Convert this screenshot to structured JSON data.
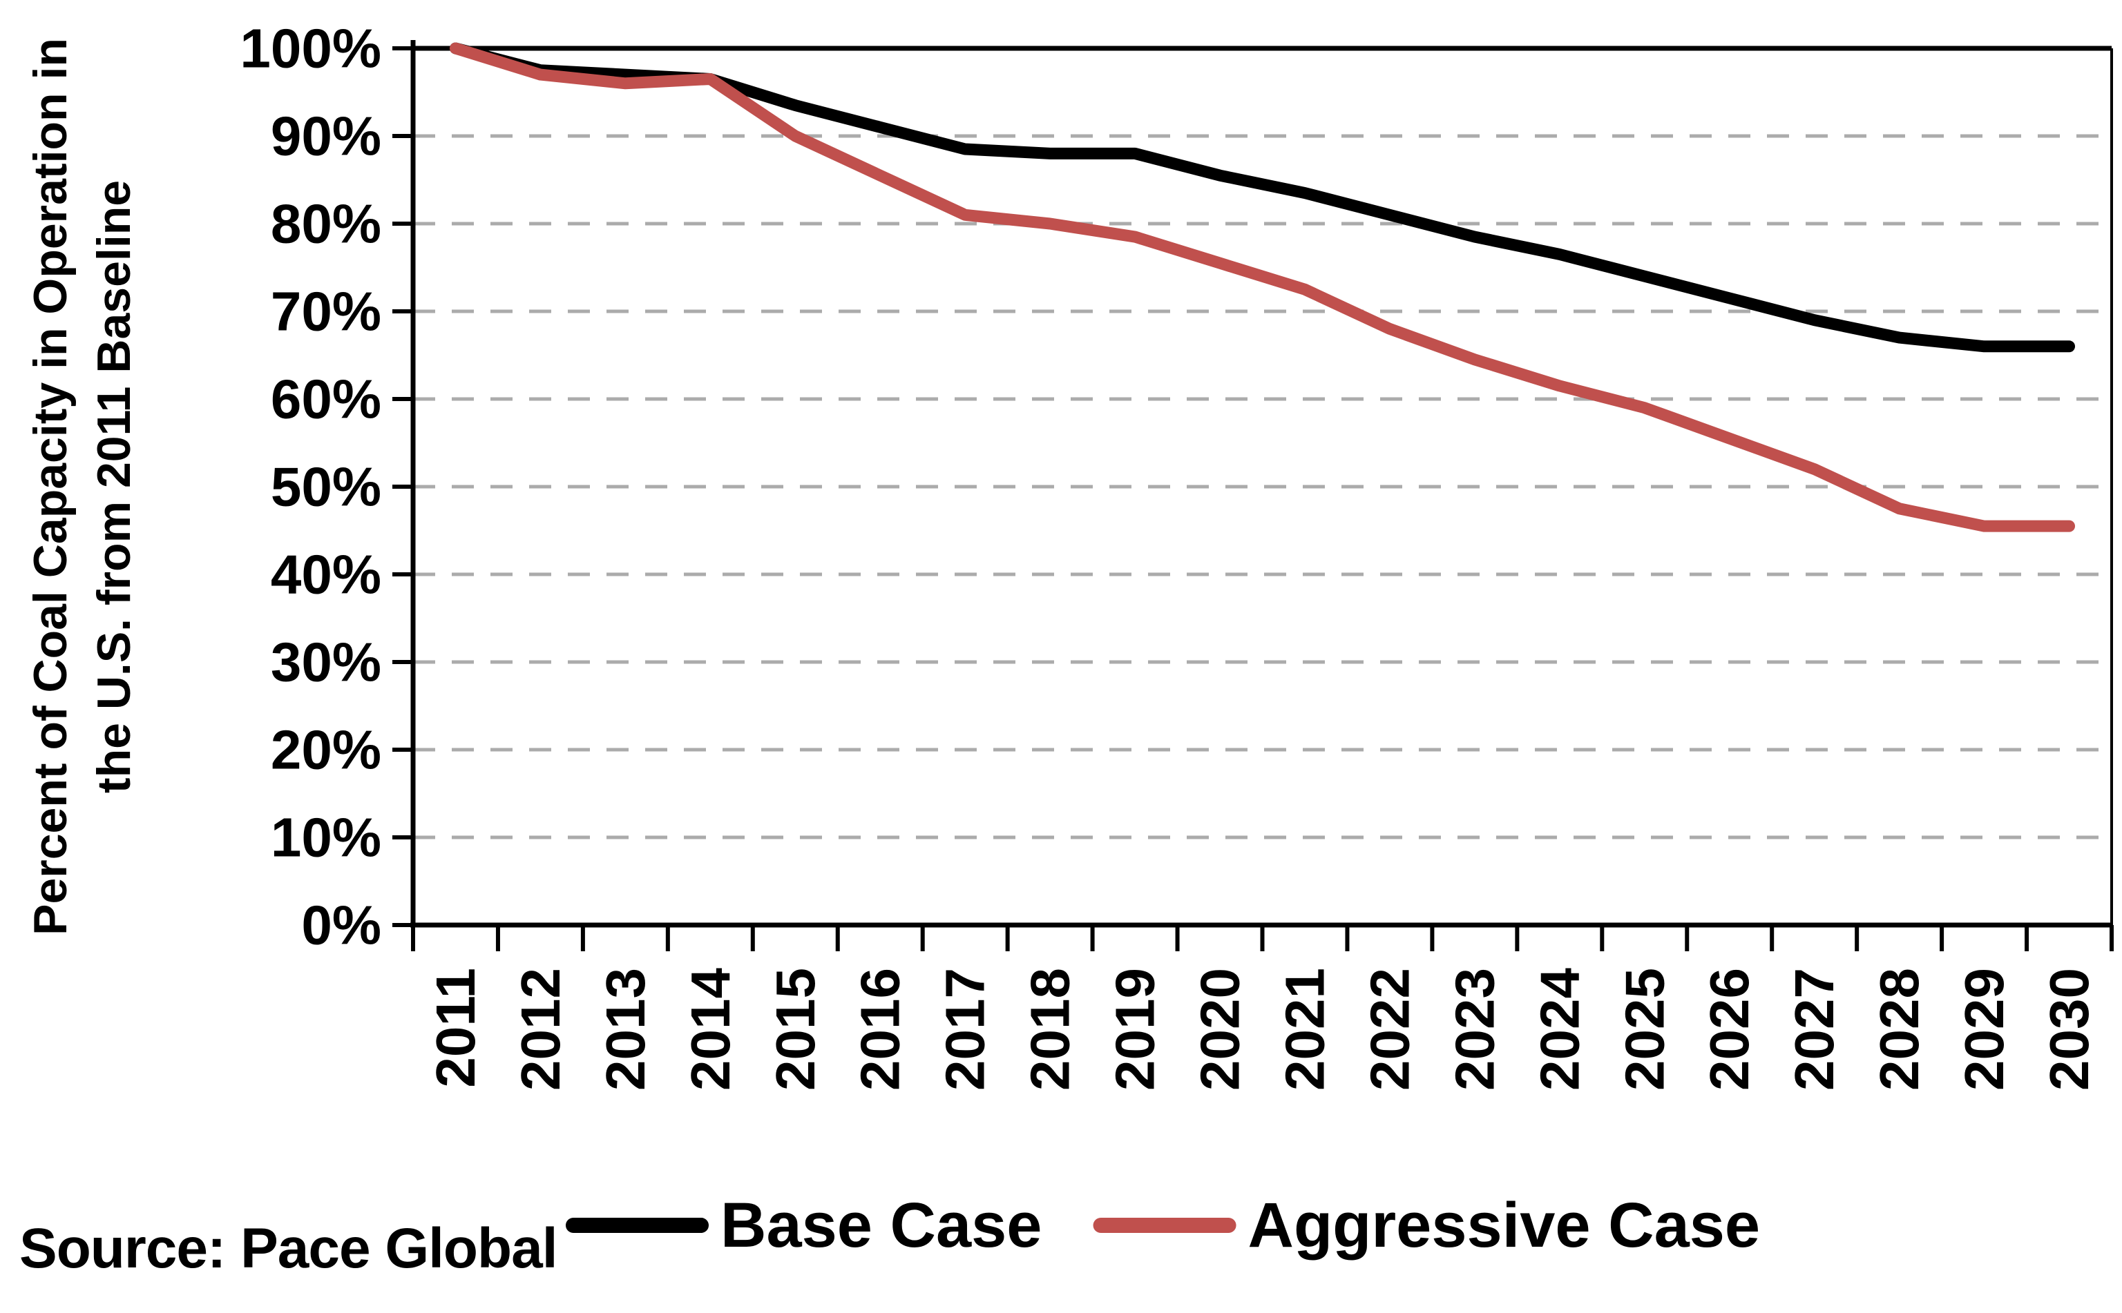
{
  "chart_data": {
    "type": "line",
    "title": "",
    "ylabel": "Percent of Coal Capacity in Operation in the U.S. from 2011 Baseline",
    "ylabel_lines": [
      "Percent of Coal Capacity in Operation in",
      "the U.S. from 2011 Baseline"
    ],
    "xlabel": "",
    "categories": [
      "2011",
      "2012",
      "2013",
      "2014",
      "2015",
      "2016",
      "2017",
      "2018",
      "2019",
      "2020",
      "2021",
      "2022",
      "2023",
      "2024",
      "2025",
      "2026",
      "2027",
      "2028",
      "2029",
      "2030"
    ],
    "series": [
      {
        "name": "Base Case",
        "color": "#000000",
        "values": [
          100,
          97.5,
          97,
          96.5,
          93.5,
          91,
          88.5,
          88,
          88,
          85.5,
          83.5,
          81,
          78.5,
          76.5,
          74,
          71.5,
          69,
          67,
          66,
          66
        ]
      },
      {
        "name": "Aggressive Case",
        "color": "#C0504D",
        "values": [
          100,
          97,
          96,
          96.5,
          90,
          85.5,
          81,
          80,
          78.5,
          75.5,
          72.5,
          68,
          64.5,
          61.5,
          59,
          55.5,
          52,
          47.5,
          45.5,
          45.5
        ]
      }
    ],
    "y_axis": {
      "min": 0,
      "max": 100,
      "step": 10,
      "tick_labels": [
        "100%",
        "90%",
        "80%",
        "70%",
        "60%",
        "50%",
        "40%",
        "30%",
        "20%",
        "10%",
        "0%"
      ]
    },
    "grid": {
      "horizontal": "dashed",
      "top_line": "solid",
      "color": "#ABABAB"
    },
    "legend_position": "bottom"
  },
  "source_note": "Source: Pace Global"
}
